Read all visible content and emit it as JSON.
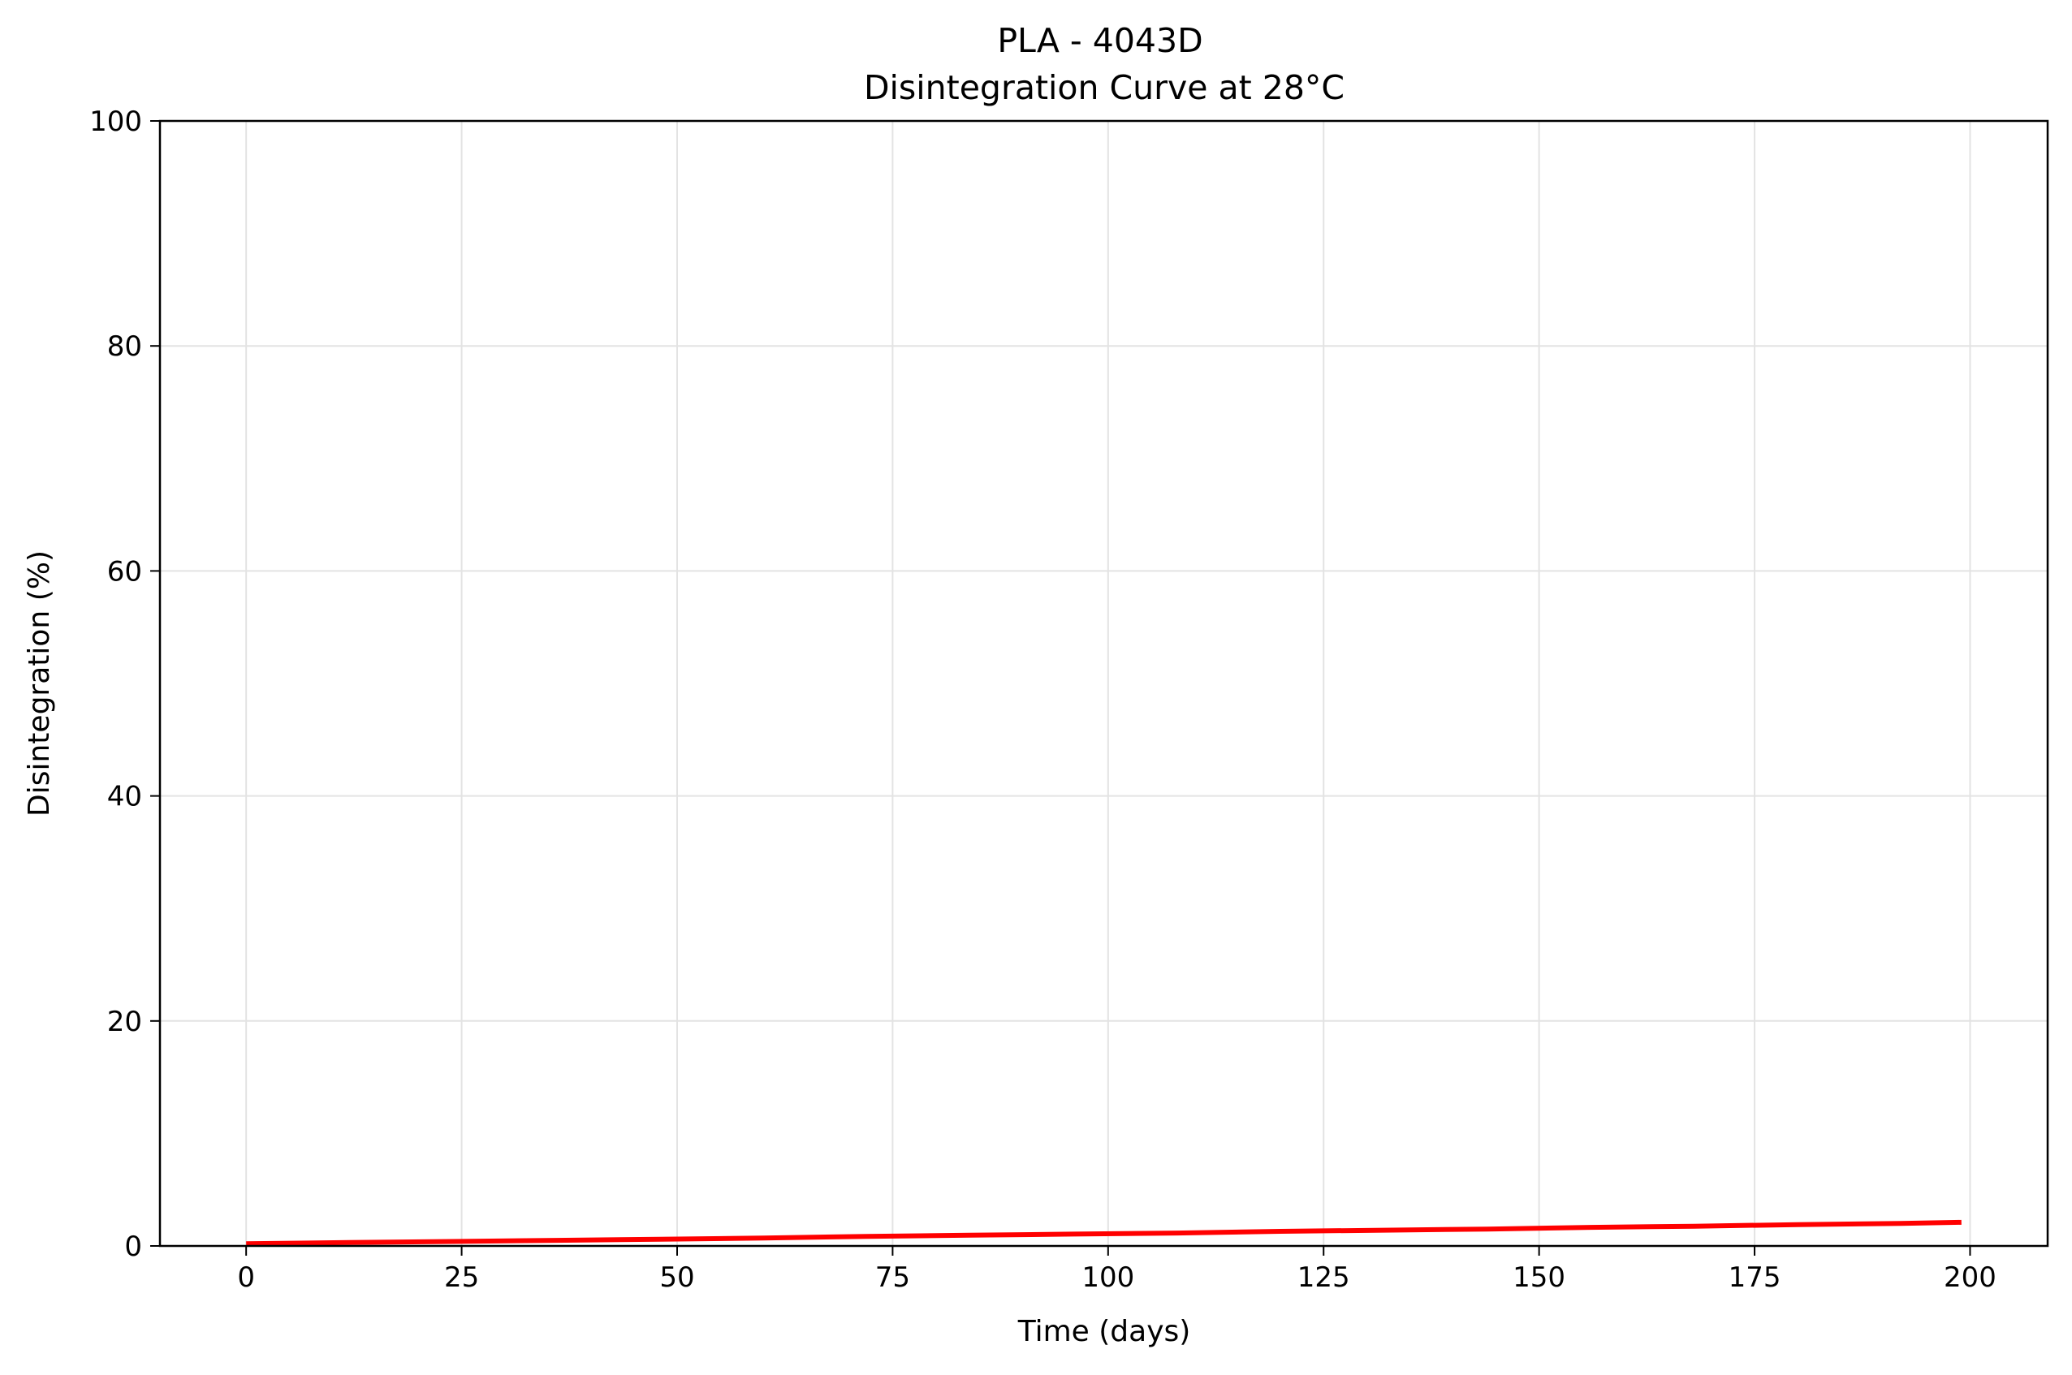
{
  "chart_data": {
    "type": "line",
    "title": "PLA - 4043D",
    "subtitle": "Disintegration Curve at 28°C",
    "xlabel": "Time (days)",
    "ylabel": "Disintegration (%)",
    "xlim": [
      -10,
      209
    ],
    "ylim": [
      0,
      100
    ],
    "x_ticks": [
      "0",
      "25",
      "50",
      "75",
      "100",
      "125",
      "150",
      "175",
      "200"
    ],
    "y_ticks": [
      "0",
      "20",
      "40",
      "60",
      "80",
      "100"
    ],
    "grid": true,
    "series": [
      {
        "color": "#ff0000",
        "x": [
          0,
          12,
          24,
          36,
          48,
          60,
          72,
          84,
          96,
          108,
          120,
          132,
          144,
          156,
          168,
          180,
          192,
          199
        ],
        "y": [
          0.2,
          0.3,
          0.4,
          0.5,
          0.6,
          0.7,
          0.85,
          0.95,
          1.05,
          1.15,
          1.3,
          1.4,
          1.5,
          1.65,
          1.75,
          1.9,
          2.0,
          2.1
        ]
      }
    ]
  }
}
